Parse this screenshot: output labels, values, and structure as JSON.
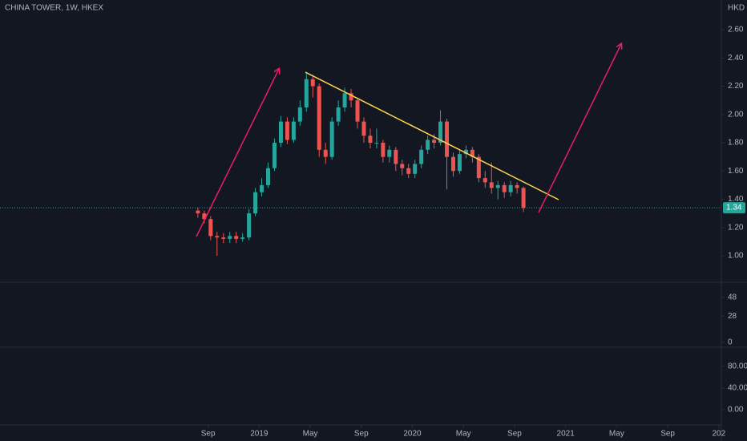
{
  "chart_data": [
    {
      "type": "candlestick",
      "title": "CHINA TOWER, 1W, HKEX",
      "unit": "HKD",
      "up_color": "#26a69a",
      "down_color": "#ef5350",
      "x": [
        7.2,
        7.7,
        8.2,
        8.7,
        9.2,
        9.7,
        10.2,
        10.7,
        11.2,
        11.7,
        12.2,
        12.7,
        13.2,
        13.7,
        14.2,
        14.7,
        15.2,
        15.7,
        16.2,
        16.7,
        17.2,
        17.7,
        18.2,
        18.7,
        19.2,
        19.7,
        20.2,
        20.7,
        21.2,
        21.7,
        22.2,
        22.7,
        23.2,
        23.7,
        24.2,
        24.7,
        25.2,
        25.7,
        26.2,
        26.7,
        27.2,
        27.7,
        28.2,
        28.7,
        29.2,
        29.7,
        30.2,
        30.7,
        31.2,
        31.7,
        32.2,
        32.7
      ],
      "open": [
        1.32,
        1.3,
        1.26,
        1.14,
        1.13,
        1.12,
        1.14,
        1.12,
        1.13,
        1.3,
        1.45,
        1.5,
        1.62,
        1.8,
        1.95,
        1.82,
        1.95,
        2.05,
        2.25,
        2.2,
        1.75,
        1.7,
        1.95,
        2.05,
        2.15,
        2.1,
        1.95,
        1.85,
        1.8,
        1.8,
        1.7,
        1.75,
        1.65,
        1.62,
        1.58,
        1.65,
        1.75,
        1.82,
        1.8,
        1.95,
        1.7,
        1.6,
        1.72,
        1.75,
        1.7,
        1.55,
        1.52,
        1.48,
        1.5,
        1.45,
        1.5,
        1.48
      ],
      "high": [
        1.34,
        1.32,
        1.28,
        1.17,
        1.16,
        1.17,
        1.17,
        1.16,
        1.33,
        1.48,
        1.55,
        1.66,
        1.83,
        1.99,
        1.98,
        1.98,
        2.1,
        2.3,
        2.28,
        2.22,
        1.8,
        1.98,
        2.1,
        2.19,
        2.18,
        2.12,
        1.98,
        1.9,
        1.9,
        1.82,
        1.78,
        1.77,
        1.68,
        1.65,
        1.68,
        1.78,
        1.85,
        1.86,
        2.03,
        1.97,
        1.73,
        1.75,
        1.78,
        1.77,
        1.72,
        1.6,
        1.66,
        1.53,
        1.52,
        1.53,
        1.52,
        1.49
      ],
      "low": [
        1.27,
        1.23,
        1.11,
        1.0,
        1.09,
        1.09,
        1.09,
        1.1,
        1.11,
        1.28,
        1.42,
        1.48,
        1.6,
        1.77,
        1.79,
        1.8,
        1.92,
        2.02,
        2.12,
        1.7,
        1.65,
        1.68,
        1.92,
        2.02,
        2.05,
        1.9,
        1.8,
        1.76,
        1.76,
        1.66,
        1.66,
        1.6,
        1.57,
        1.55,
        1.55,
        1.62,
        1.72,
        1.76,
        1.78,
        1.47,
        1.56,
        1.58,
        1.69,
        1.66,
        1.52,
        1.48,
        1.44,
        1.4,
        1.41,
        1.42,
        1.44,
        1.31
      ],
      "close": [
        1.3,
        1.26,
        1.14,
        1.13,
        1.12,
        1.14,
        1.12,
        1.13,
        1.3,
        1.45,
        1.5,
        1.62,
        1.8,
        1.95,
        1.82,
        1.95,
        2.05,
        2.25,
        2.2,
        1.75,
        1.7,
        1.95,
        2.05,
        2.15,
        2.1,
        1.95,
        1.85,
        1.8,
        1.8,
        1.7,
        1.75,
        1.65,
        1.62,
        1.58,
        1.65,
        1.75,
        1.82,
        1.8,
        1.95,
        1.7,
        1.6,
        1.72,
        1.75,
        1.7,
        1.55,
        1.52,
        1.48,
        1.5,
        1.45,
        1.5,
        1.48,
        1.34
      ],
      "last_price": {
        "value": 1.34,
        "label": "1.34"
      },
      "xlim": [
        -8.3,
        48.2
      ],
      "xticks": [
        {
          "value": 8,
          "label": "Sep"
        },
        {
          "value": 12,
          "label": "2019"
        },
        {
          "value": 16,
          "label": "May"
        },
        {
          "value": 20,
          "label": "Sep"
        },
        {
          "value": 24,
          "label": "2020"
        },
        {
          "value": 28,
          "label": "May"
        },
        {
          "value": 32,
          "label": "Sep"
        },
        {
          "value": 36,
          "label": "2021"
        },
        {
          "value": 40,
          "label": "May"
        },
        {
          "value": 44,
          "label": "Sep"
        },
        {
          "value": 48,
          "label": "202"
        }
      ],
      "ylim": [
        0.813,
        2.81
      ],
      "yticks": [
        {
          "value": 1,
          "label": "1.00"
        },
        {
          "value": 1.2,
          "label": "1.20"
        },
        {
          "value": 1.4,
          "label": "1.40"
        },
        {
          "value": 1.6,
          "label": "1.60"
        },
        {
          "value": 1.8,
          "label": "1.80"
        },
        {
          "value": 2,
          "label": "2.00"
        },
        {
          "value": 2.2,
          "label": "2.20"
        },
        {
          "value": 2.4,
          "label": "2.40"
        },
        {
          "value": 2.6,
          "label": "2.60"
        }
      ]
    },
    {
      "type": "line",
      "ylim": [
        -5.4,
        64.2
      ],
      "yticks": [
        0,
        28,
        48
      ]
    },
    {
      "type": "line",
      "ylim": [
        -28.1,
        115.1
      ],
      "yticks": [
        {
          "value": 0,
          "label": "0.00"
        },
        {
          "value": 40,
          "label": "40.00"
        },
        {
          "value": 80,
          "label": "80.00"
        }
      ]
    }
  ]
}
